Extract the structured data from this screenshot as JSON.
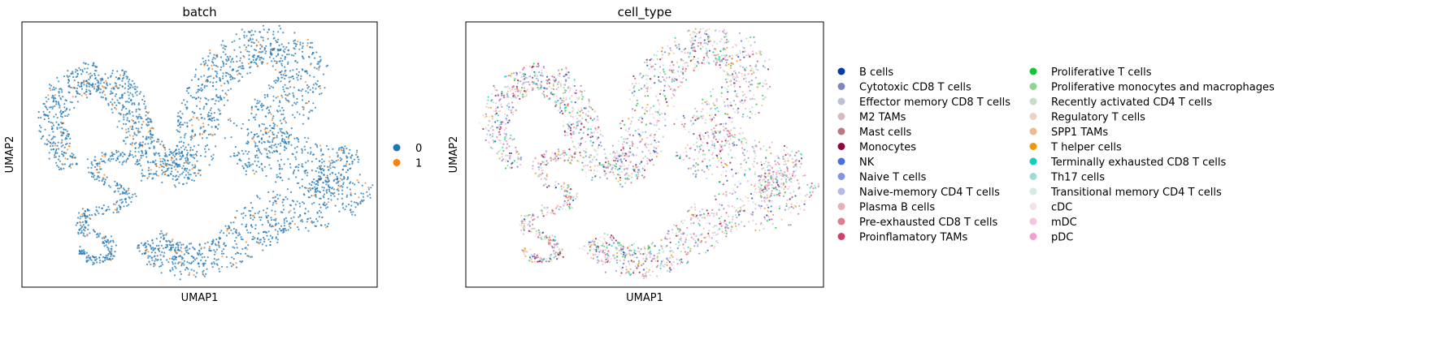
{
  "chart_data": [
    {
      "type": "scatter",
      "title": "batch",
      "xlabel": "UMAP1",
      "ylabel": "UMAP2",
      "grid": false,
      "ticks": false,
      "legend_position": "right",
      "legend_columns": 1,
      "marker_size": "tiny",
      "embedding_shape": "thick serpentine band forming a U-shaped loop, open at the center, with thin winding tails at lower-left",
      "series": [
        {
          "name": "0",
          "color": "#1f77b4",
          "share_of_points": 0.93
        },
        {
          "name": "1",
          "color": "#ff7f0e",
          "share_of_points": 0.07
        }
      ]
    },
    {
      "type": "scatter",
      "title": "cell_type",
      "xlabel": "UMAP1",
      "ylabel": "UMAP2",
      "grid": false,
      "ticks": false,
      "legend_position": "right",
      "legend_columns": 2,
      "marker_size": "tiny",
      "embedding_shape": "same embedding as the batch panel, colored by cell type",
      "series": [
        {
          "name": "B cells",
          "color": "#023fa5"
        },
        {
          "name": "Cytotoxic CD8 T cells",
          "color": "#7d87b9"
        },
        {
          "name": "Effector memory CD8 T cells",
          "color": "#bec1d4"
        },
        {
          "name": "M2 TAMs",
          "color": "#d6bcc0"
        },
        {
          "name": "Mast cells",
          "color": "#bb7784"
        },
        {
          "name": "Monocytes",
          "color": "#8e063b"
        },
        {
          "name": "NK",
          "color": "#4a6fe3"
        },
        {
          "name": "Naive T cells",
          "color": "#8595e1"
        },
        {
          "name": "Naive-memory CD4 T cells",
          "color": "#b5bbe3"
        },
        {
          "name": "Plasma B cells",
          "color": "#e6afb9"
        },
        {
          "name": "Pre-exhausted CD8 T cells",
          "color": "#e07b91"
        },
        {
          "name": "Proinflamatory TAMs",
          "color": "#d33f6a"
        },
        {
          "name": "Proliferative T cells",
          "color": "#11c638"
        },
        {
          "name": "Proliferative monocytes and macrophages",
          "color": "#8dd593"
        },
        {
          "name": "Recently activated CD4 T cells",
          "color": "#c6dec7"
        },
        {
          "name": "Regulatory T cells",
          "color": "#ead3c6"
        },
        {
          "name": "SPP1 TAMs",
          "color": "#f0b98d"
        },
        {
          "name": "T helper cells",
          "color": "#ef9708"
        },
        {
          "name": "Terminally exhausted CD8 T cells",
          "color": "#0fcfc0"
        },
        {
          "name": "Th17 cells",
          "color": "#9cded6"
        },
        {
          "name": "Transitional memory CD4 T cells",
          "color": "#d5eae7"
        },
        {
          "name": "cDC",
          "color": "#f3e1eb"
        },
        {
          "name": "mDC",
          "color": "#f6c4e1"
        },
        {
          "name": "pDC",
          "color": "#f79cd4"
        }
      ]
    }
  ]
}
